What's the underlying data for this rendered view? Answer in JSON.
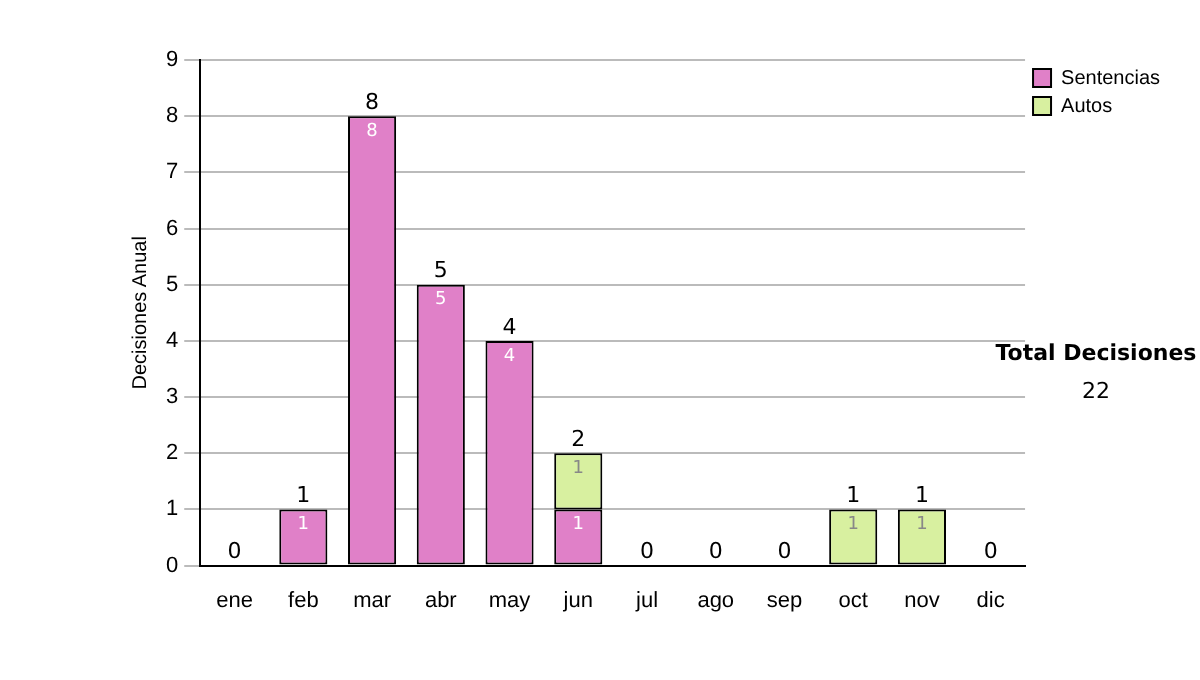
{
  "chart_data": {
    "type": "bar",
    "stacked": true,
    "ylabel": "Decisiones Anual",
    "categories": [
      "ene",
      "feb",
      "mar",
      "abr",
      "may",
      "jun",
      "jul",
      "ago",
      "sep",
      "oct",
      "nov",
      "dic"
    ],
    "series": [
      {
        "name": "Sentencias",
        "color": "#e080c8",
        "values": [
          0,
          1,
          8,
          5,
          4,
          1,
          0,
          0,
          0,
          0,
          0,
          0
        ],
        "value_labels": [
          null,
          "1",
          "8",
          "5",
          "4",
          "1",
          null,
          null,
          null,
          null,
          null,
          null
        ]
      },
      {
        "name": "Autos",
        "color": "#d8f0a0",
        "values": [
          0,
          0,
          0,
          0,
          0,
          1,
          0,
          0,
          0,
          1,
          1,
          0
        ],
        "value_labels": [
          null,
          null,
          null,
          null,
          null,
          "1",
          null,
          null,
          null,
          "1",
          "1",
          null
        ]
      }
    ],
    "ylim": [
      0,
      9
    ],
    "yticks": [
      0,
      1,
      2,
      3,
      4,
      5,
      6,
      7,
      8,
      9
    ],
    "grid": "y",
    "legend": "right",
    "totals": [
      "0",
      "1",
      "8",
      "5",
      "4",
      "2",
      "0",
      "0",
      "0",
      "1",
      "1",
      "0"
    ],
    "annotations": [
      "Total Decisiones",
      "22"
    ]
  }
}
